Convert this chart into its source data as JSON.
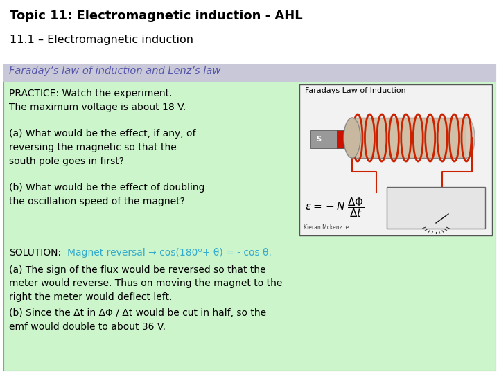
{
  "title_line1": "Topic 11: Electromagnetic induction - AHL",
  "title_line2": "11.1 – Electromagnetic induction",
  "bg_color": "#ffffff",
  "content_bg_color": "#ccf5cc",
  "header_bg_color": "#c8c8d8",
  "header_text": "Faraday’s law of induction and Lenz’s law",
  "header_text_color": "#5555aa",
  "body_text_color": "#000000",
  "solution_color": "#33aacc",
  "title_color": "#000000",
  "title_fontsize": 13,
  "subtitle_fontsize": 11.5,
  "header_fontsize": 10.5,
  "body_fontsize": 10,
  "solution_prefix": "SOLUTION:",
  "solution_colored": "Magnet reversal → cos(180º+ θ) = - cos θ.",
  "answer_a_lines": [
    "(a) The sign of the flux would be reversed so that the",
    "meter would reverse. Thus on moving the magnet to the",
    "right the meter would deflect left."
  ],
  "answer_b_lines": [
    "(b) Since the Δt in ΔΦ / Δt would be cut in half, so the",
    "emf would double to about 36 V."
  ]
}
